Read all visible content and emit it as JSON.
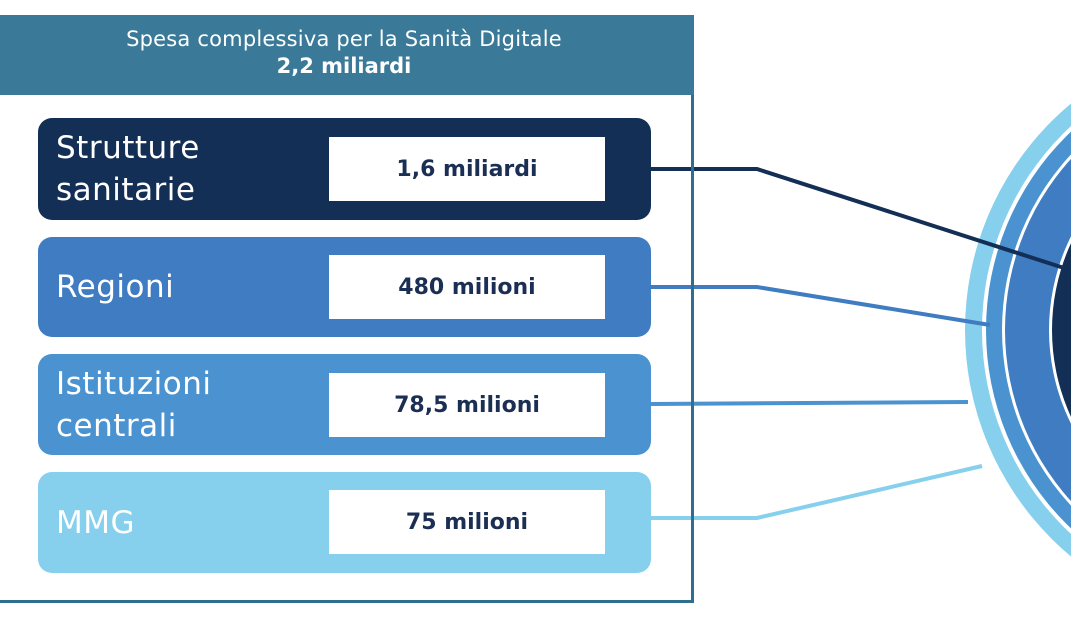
{
  "header": {
    "title": "Spesa complessiva per la Sanità Digitale",
    "total": "2,2 miliardi"
  },
  "rows": [
    {
      "label_line1": "Strutture",
      "label_line2": "sanitarie",
      "value": "1,6 miliardi",
      "color": "#142f55"
    },
    {
      "label_line1": "Regioni",
      "label_line2": "",
      "value": "480 milioni",
      "color": "#3f7cc2"
    },
    {
      "label_line1": "Istituzioni",
      "label_line2": "centrali",
      "value": "78,5 milioni",
      "color": "#4a92d0"
    },
    {
      "label_line1": "MMG",
      "label_line2": "",
      "value": "75 milioni",
      "color": "#86d0ee"
    }
  ],
  "colors": {
    "header": "#3a7a98",
    "frame": "#2f6e8f",
    "value_text": "#1b2f54"
  }
}
